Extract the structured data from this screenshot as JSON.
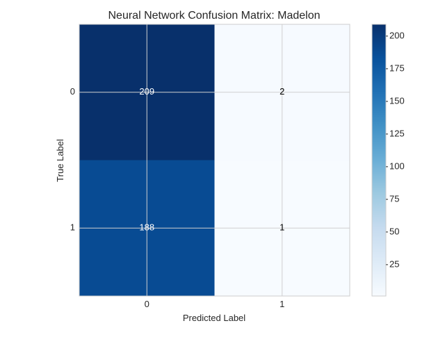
{
  "chart_data": {
    "type": "heatmap",
    "title": "Neural Network Confusion Matrix: Madelon",
    "xlabel": "Predicted Label",
    "ylabel": "True Label",
    "x_categories": [
      "0",
      "1"
    ],
    "y_categories": [
      "0",
      "1"
    ],
    "matrix": [
      [
        209,
        2
      ],
      [
        188,
        1
      ]
    ],
    "colormap": "Blues",
    "color_range": [
      1,
      209
    ],
    "colorbar_ticks": [
      25,
      50,
      75,
      100,
      125,
      150,
      175,
      200
    ],
    "grid": true,
    "colors": {
      "low": "#f7fbff",
      "high": "#08306b",
      "grid": "#d0d0d0",
      "text_on_dark": "#ffffff",
      "text_on_light": "#000000"
    }
  }
}
